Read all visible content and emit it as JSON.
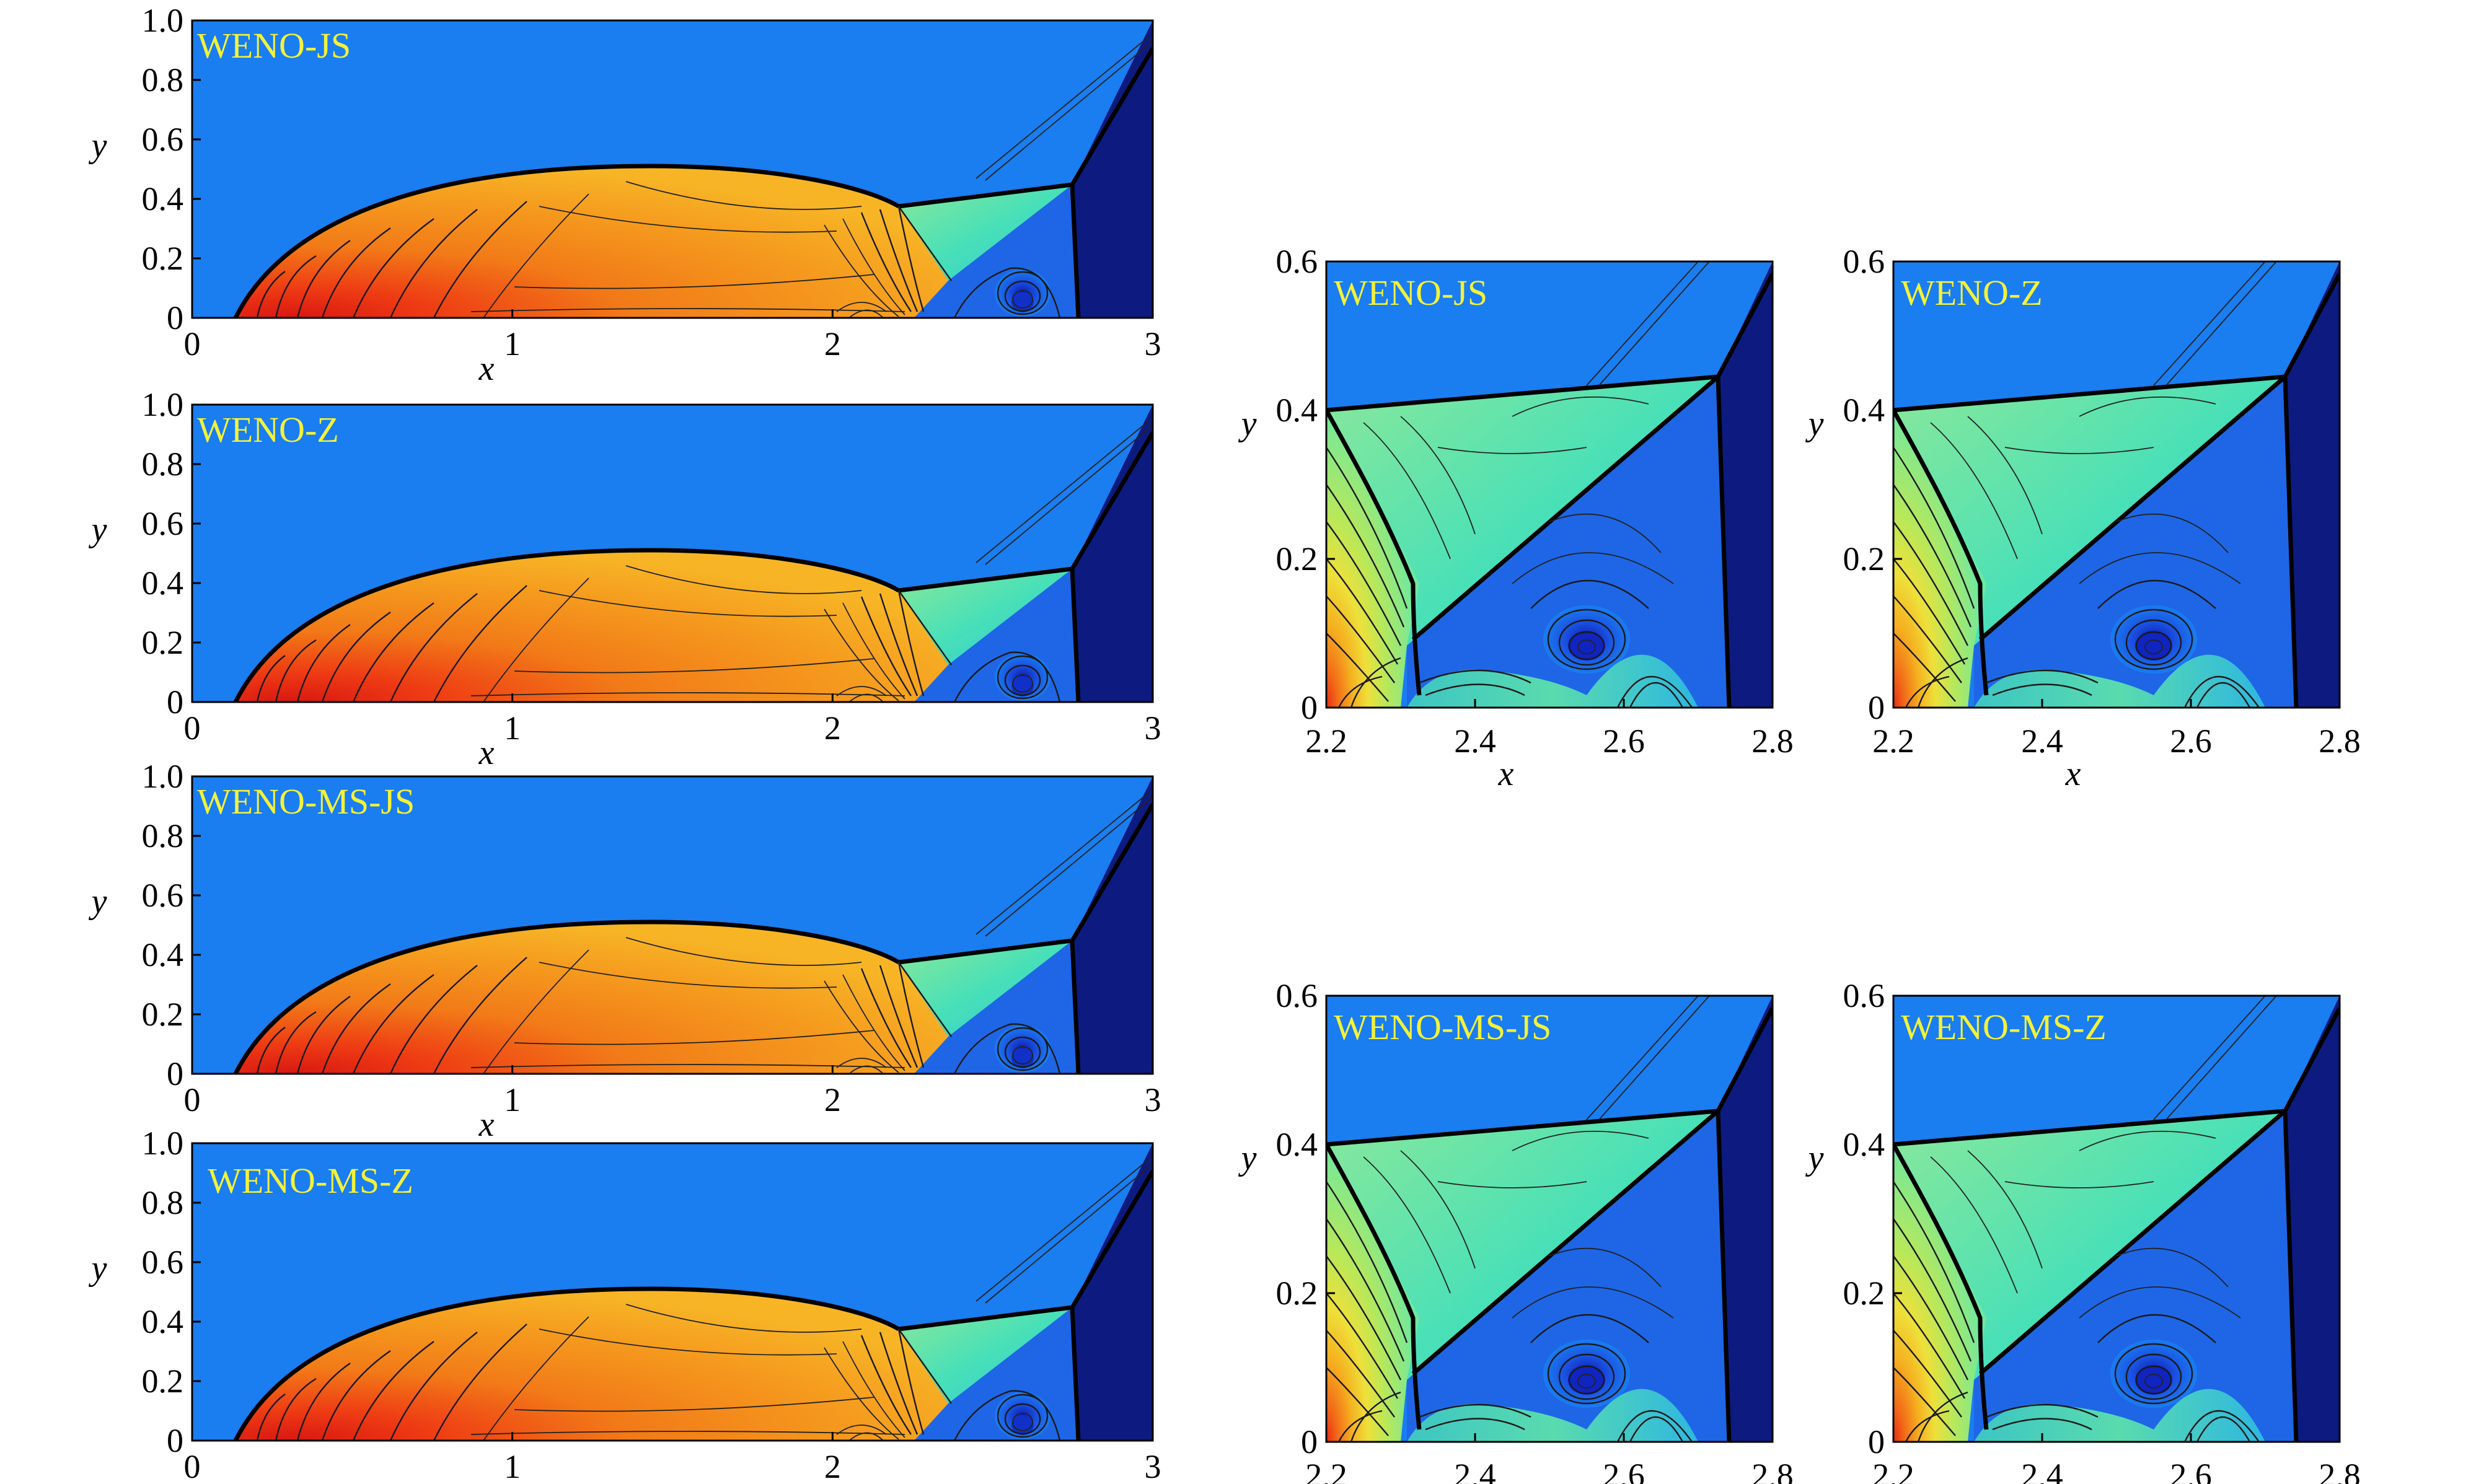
{
  "figure": {
    "colors": {
      "background_flow": "#1a7df0",
      "post_shock_far": "#0d1a80",
      "stagnation": "#e8261a",
      "high_density": "#f08a1a",
      "mid_density": "#f5c020",
      "slip_region": "#3ce0b0",
      "jet_region": "#1a5ae0",
      "label": "#f2f23a"
    }
  },
  "full_panels": [
    {
      "id": "full-weno-js",
      "title": "WENO-JS"
    },
    {
      "id": "full-weno-z",
      "title": "WENO-Z"
    },
    {
      "id": "full-weno-ms-js",
      "title": "WENO-MS-JS"
    },
    {
      "id": "full-weno-ms-z",
      "title": "WENO-MS-Z"
    }
  ],
  "zoom_panels": [
    {
      "id": "zoom-weno-js",
      "title": "WENO-JS"
    },
    {
      "id": "zoom-weno-z",
      "title": "WENO-Z"
    },
    {
      "id": "zoom-weno-ms-js",
      "title": "WENO-MS-JS"
    },
    {
      "id": "zoom-weno-ms-z",
      "title": "WENO-MS-Z"
    }
  ],
  "axes": {
    "full": {
      "xlabel": "x",
      "ylabel": "y",
      "xticks": [
        "0",
        "1",
        "2",
        "3"
      ],
      "yticks": [
        "0",
        "0.2",
        "0.4",
        "0.6",
        "0.8",
        "1.0"
      ],
      "xlim": [
        0,
        3
      ],
      "ylim": [
        0,
        1
      ]
    },
    "zoom": {
      "xlabel": "x",
      "ylabel": "y",
      "xticks": [
        "2.2",
        "2.4",
        "2.6",
        "2.8"
      ],
      "yticks": [
        "0",
        "0.2",
        "0.4",
        "0.6"
      ],
      "xlim": [
        2.2,
        2.8
      ],
      "ylim": [
        0,
        0.6
      ]
    }
  }
}
